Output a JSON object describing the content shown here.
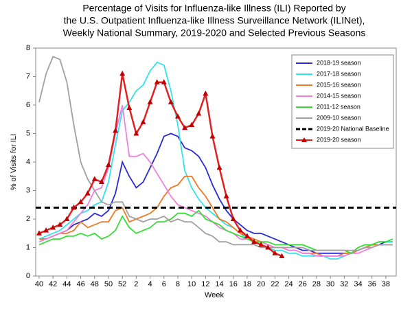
{
  "chart_data": {
    "type": "line",
    "title": [
      "Percentage of Visits for Influenza-like Illness (ILI) Reported by",
      "the U.S. Outpatient Influenza-like Illness Surveillance Network (ILINet),",
      "Weekly National Summary, 2019-2020 and Selected Previous Seasons"
    ],
    "ylabel": "% of Visits for ILI",
    "xlabel": "Week",
    "ylim": [
      0,
      8
    ],
    "yticks": [
      0,
      1,
      2,
      3,
      4,
      5,
      6,
      7,
      8
    ],
    "categories": [
      40,
      null,
      42,
      null,
      44,
      null,
      46,
      null,
      48,
      null,
      50,
      null,
      52,
      null,
      2,
      null,
      4,
      null,
      6,
      null,
      8,
      null,
      10,
      null,
      12,
      null,
      14,
      null,
      16,
      null,
      18,
      null,
      20,
      null,
      22,
      null,
      24,
      null,
      26,
      null,
      28,
      null,
      30,
      null,
      32,
      null,
      34,
      null,
      36,
      null,
      38,
      null
    ],
    "legend": "upper right",
    "series": [
      {
        "name": "2018-19 season",
        "color": "#2a2ad4",
        "values": [
          1.3,
          1.3,
          1.4,
          1.5,
          1.6,
          1.8,
          1.9,
          2.0,
          2.2,
          2.1,
          2.3,
          2.9,
          4.0,
          3.5,
          3.1,
          3.3,
          3.8,
          4.3,
          4.9,
          5.0,
          4.9,
          4.5,
          4.4,
          4.2,
          3.8,
          3.2,
          2.7,
          2.3,
          2.0,
          1.8,
          1.6,
          1.5,
          1.5,
          1.4,
          1.3,
          1.2,
          1.1,
          1.0,
          0.9,
          0.9,
          0.8,
          0.8,
          0.8,
          0.8,
          0.8,
          0.8,
          0.9,
          1.0,
          1.1,
          1.1,
          1.2,
          1.2
        ]
      },
      {
        "name": "2017-18 season",
        "color": "#33e3ea",
        "values": [
          1.3,
          1.4,
          1.5,
          1.6,
          1.8,
          2.0,
          2.2,
          2.3,
          2.5,
          2.6,
          3.3,
          4.6,
          5.8,
          6.1,
          6.5,
          6.7,
          7.2,
          7.5,
          7.4,
          6.5,
          5.3,
          3.7,
          3.1,
          2.7,
          2.4,
          2.2,
          2.0,
          1.8,
          1.7,
          1.5,
          1.3,
          1.2,
          1.1,
          1.0,
          0.9,
          0.9,
          0.8,
          0.8,
          0.7,
          0.7,
          0.7,
          0.7,
          0.6,
          0.6,
          0.7,
          0.8,
          0.9,
          1.0,
          1.1,
          1.2,
          1.2,
          1.2
        ]
      },
      {
        "name": "2015-16 season",
        "color": "#f07820",
        "values": [
          1.3,
          1.3,
          1.4,
          1.5,
          1.5,
          1.6,
          1.9,
          1.7,
          1.8,
          1.9,
          1.9,
          2.3,
          2.4,
          1.9,
          2.0,
          2.1,
          2.2,
          2.4,
          2.8,
          3.1,
          3.2,
          3.5,
          3.5,
          3.1,
          2.8,
          2.4,
          2.0,
          1.9,
          1.7,
          1.5,
          1.4,
          1.3,
          1.2,
          1.1,
          1.0,
          1.0,
          0.9,
          0.9,
          0.8,
          0.8,
          0.8,
          0.7,
          0.7,
          0.7,
          0.8,
          0.8,
          0.9,
          1.0,
          1.1,
          1.1,
          1.1,
          1.1
        ]
      },
      {
        "name": "2014-15 season",
        "color": "#f080e0",
        "values": [
          1.2,
          1.3,
          1.4,
          1.5,
          1.6,
          1.9,
          2.2,
          2.5,
          3.0,
          3.1,
          3.8,
          5.0,
          6.0,
          4.2,
          4.2,
          4.3,
          4.0,
          3.6,
          3.2,
          2.8,
          2.5,
          2.4,
          2.3,
          2.2,
          2.1,
          1.9,
          1.7,
          1.6,
          1.5,
          1.3,
          1.3,
          1.2,
          1.2,
          1.1,
          1.0,
          1.0,
          0.9,
          0.9,
          0.8,
          0.8,
          0.7,
          0.7,
          0.7,
          0.7,
          0.7,
          0.8,
          0.8,
          0.9,
          1.0,
          1.1,
          1.1,
          1.1
        ]
      },
      {
        "name": "2011-12 season",
        "color": "#33dd33",
        "values": [
          1.1,
          1.2,
          1.3,
          1.3,
          1.4,
          1.4,
          1.5,
          1.4,
          1.5,
          1.3,
          1.4,
          1.6,
          2.1,
          1.7,
          1.5,
          1.6,
          1.7,
          1.9,
          1.9,
          2.0,
          2.2,
          2.2,
          2.1,
          2.3,
          2.0,
          1.9,
          1.8,
          1.6,
          1.5,
          1.4,
          1.3,
          1.2,
          1.2,
          1.2,
          1.1,
          1.1,
          1.1,
          1.1,
          1.1,
          1.0,
          0.9,
          0.9,
          0.9,
          0.9,
          0.9,
          0.8,
          1.0,
          1.1,
          1.1,
          1.2,
          1.2,
          1.3
        ]
      },
      {
        "name": "2009-10 season",
        "color": "#a0a0a0",
        "values": [
          6.1,
          7.1,
          7.7,
          7.6,
          6.8,
          5.3,
          4.0,
          3.4,
          3.0,
          2.6,
          2.5,
          2.6,
          2.6,
          2.1,
          2.0,
          1.9,
          2.0,
          2.0,
          2.1,
          1.9,
          2.0,
          1.9,
          1.9,
          1.7,
          1.5,
          1.4,
          1.2,
          1.2,
          1.1,
          1.1,
          1.1,
          1.1,
          1.0,
          1.0,
          1.0,
          1.0,
          1.0,
          1.0,
          1.0,
          0.9,
          0.9,
          0.9,
          0.9,
          0.9,
          0.9,
          0.9,
          0.9,
          1.0,
          1.0,
          1.1,
          1.1,
          1.1
        ]
      },
      {
        "name": "2019-20 National Baseline",
        "color": "#000000",
        "dashed": true,
        "value": 2.4
      },
      {
        "name": "2019-20 season",
        "color": "#e02020",
        "marker": "triangle",
        "marker_color": "#c00000",
        "values": [
          1.5,
          1.6,
          1.7,
          1.8,
          2.0,
          2.4,
          2.6,
          2.9,
          3.4,
          3.3,
          3.9,
          5.1,
          7.1,
          5.9,
          5.0,
          5.4,
          6.1,
          6.8,
          6.8,
          6.1,
          5.6,
          5.2,
          5.3,
          5.7,
          6.4,
          4.9,
          3.8,
          2.8,
          2.0,
          1.6,
          1.4,
          1.2,
          1.1,
          1.0,
          0.8,
          0.7,
          null,
          null,
          null,
          null,
          null,
          null,
          null,
          null,
          null,
          null,
          null,
          null,
          null,
          null,
          null,
          null
        ]
      }
    ]
  }
}
